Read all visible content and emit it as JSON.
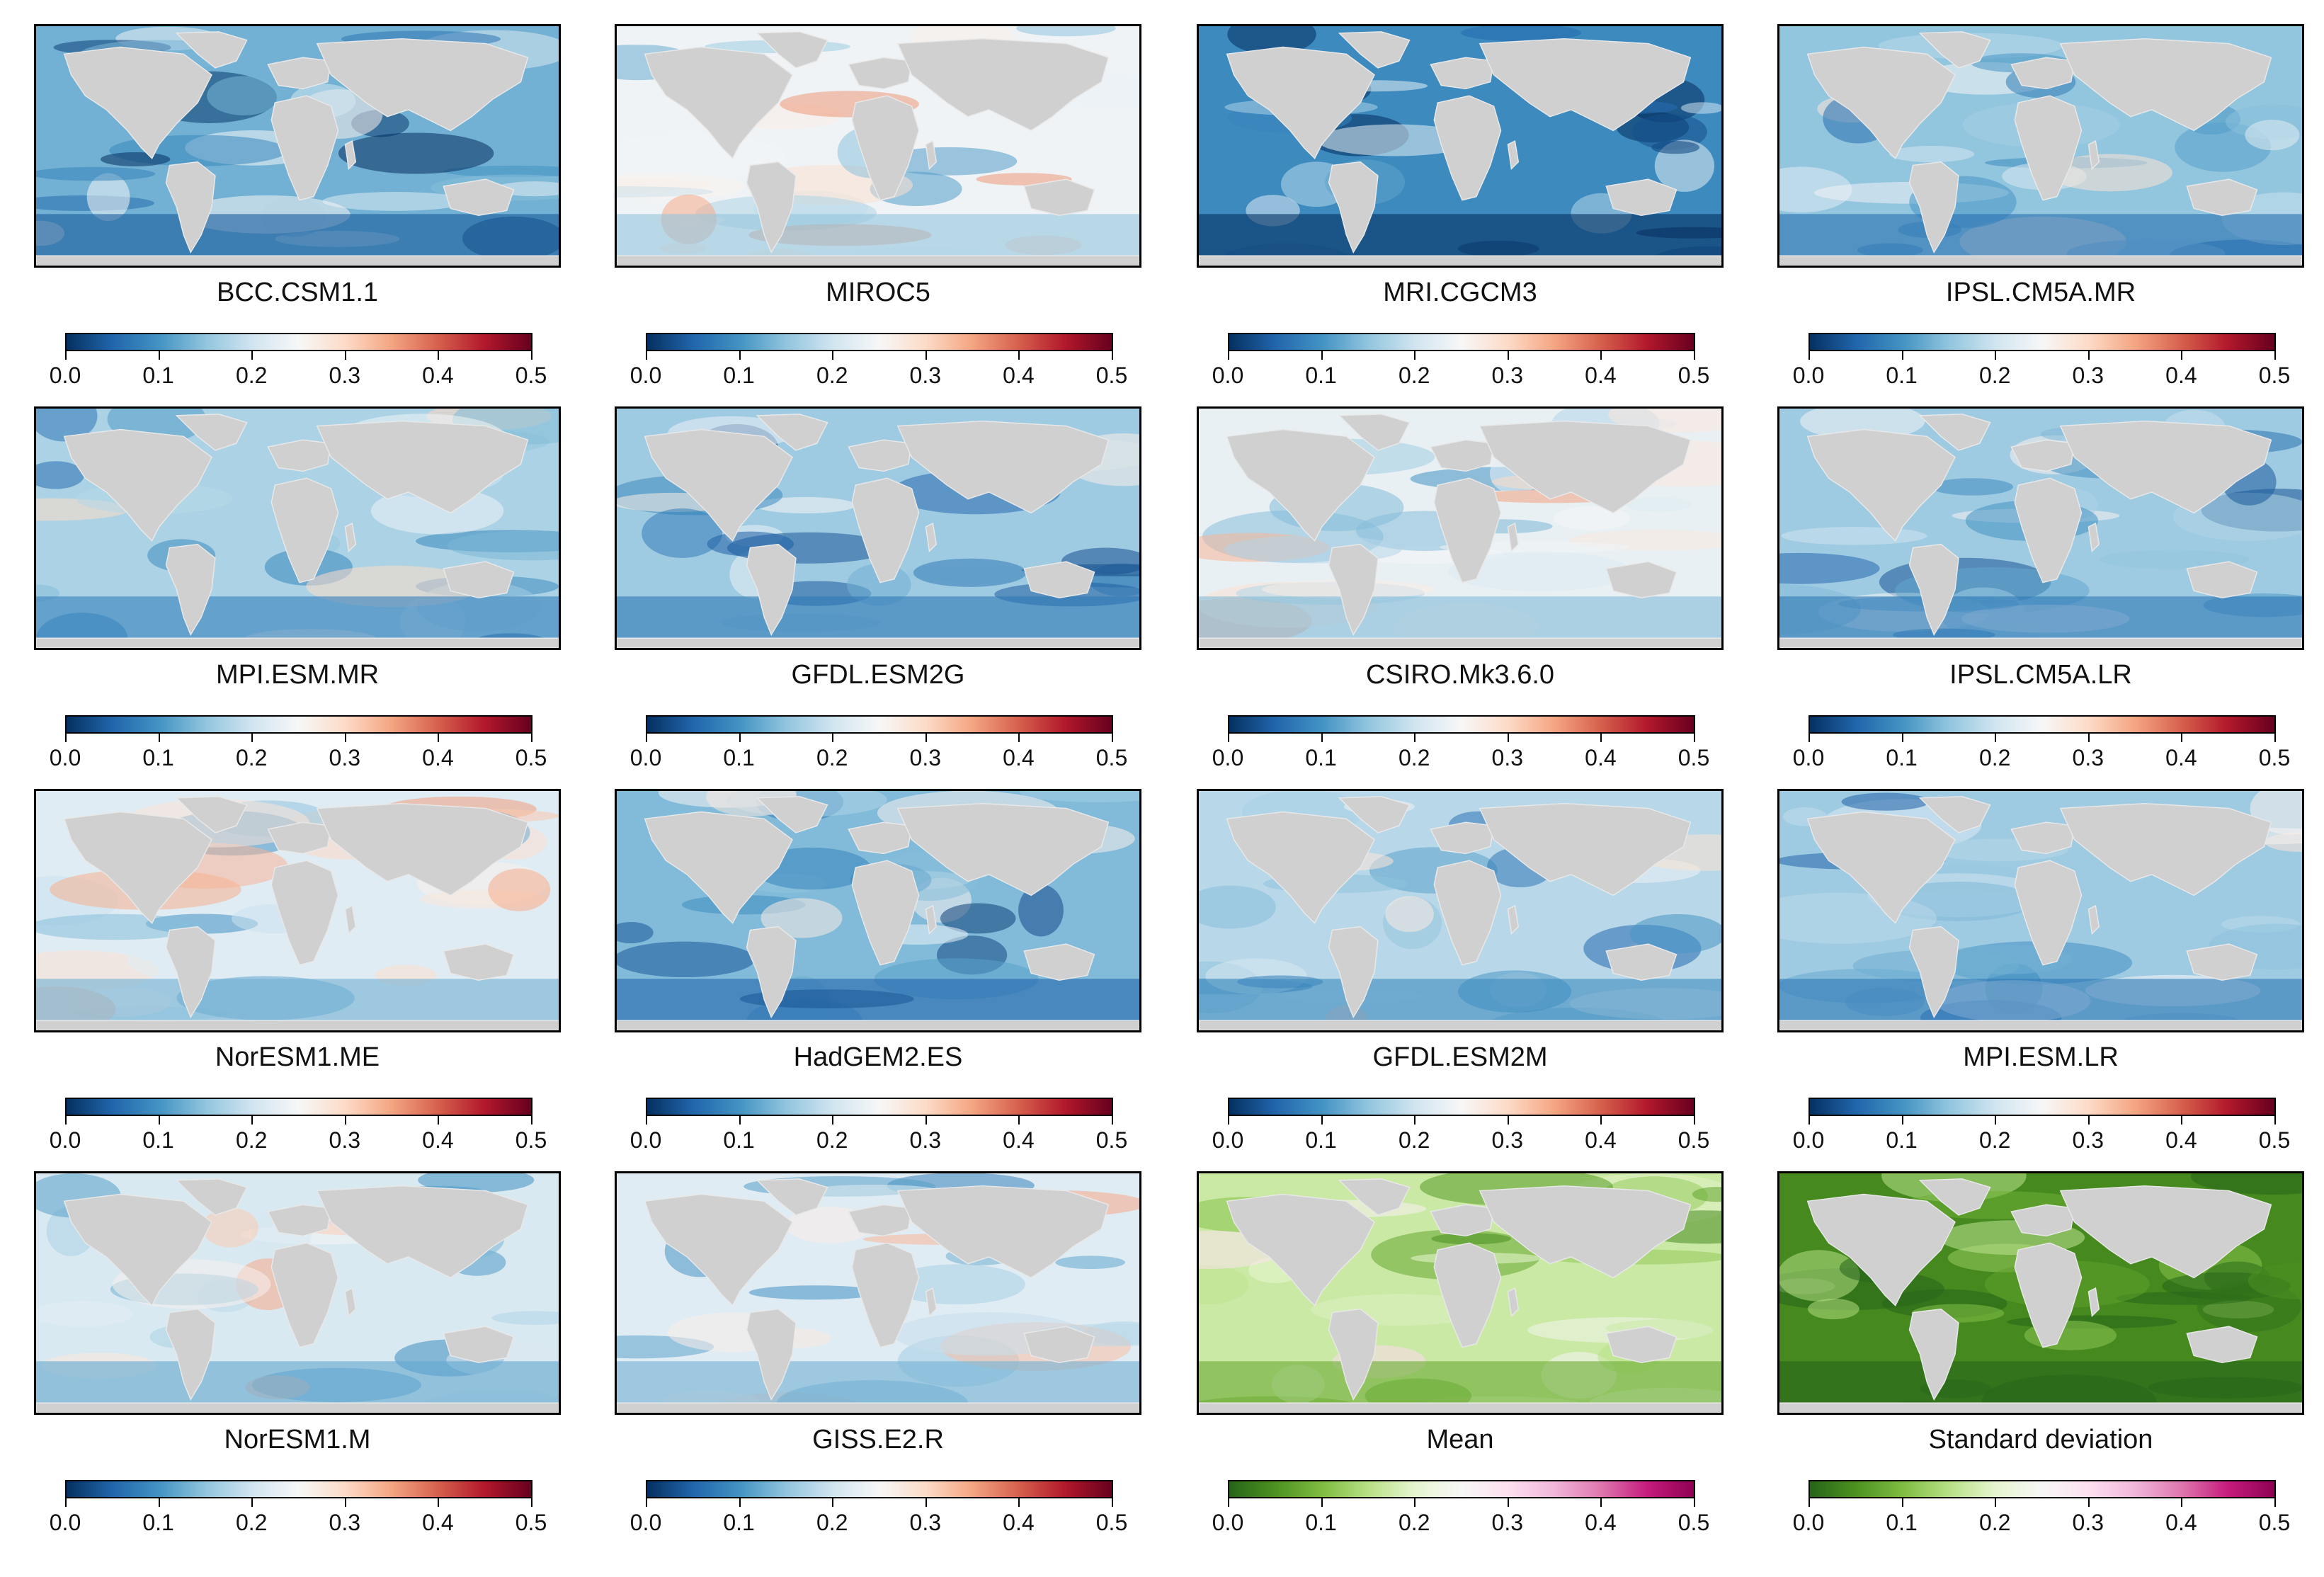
{
  "chart_data": {
    "type": "heatmap",
    "title": "",
    "colorbar": {
      "range": [
        0.0,
        0.5
      ],
      "ticks": [
        "0.0",
        "0.1",
        "0.2",
        "0.3",
        "0.4",
        "0.5"
      ]
    },
    "colormaps": {
      "diverging": [
        "#053061",
        "#2166ac",
        "#4393c3",
        "#92c5de",
        "#d1e5f0",
        "#f7f7f7",
        "#fddbc7",
        "#f4a582",
        "#d6604d",
        "#b2182b",
        "#67001f"
      ],
      "piyg": [
        "#276419",
        "#4d9221",
        "#7fbc41",
        "#b8e186",
        "#e6f5d0",
        "#f7f7f7",
        "#fde0ef",
        "#f1b6da",
        "#de77ae",
        "#c51b7d",
        "#8e0152"
      ]
    },
    "panels": [
      {
        "name": "BCC.CSM1.1",
        "colormap": "diverging",
        "mean_level": 0.13
      },
      {
        "name": "MIROC5",
        "colormap": "diverging",
        "mean_level": 0.24
      },
      {
        "name": "MRI.CGCM3",
        "colormap": "diverging",
        "mean_level": 0.09
      },
      {
        "name": "IPSL.CM5A.MR",
        "colormap": "diverging",
        "mean_level": 0.15
      },
      {
        "name": "MPI.ESM.MR",
        "colormap": "diverging",
        "mean_level": 0.17
      },
      {
        "name": "GFDL.ESM2G",
        "colormap": "diverging",
        "mean_level": 0.16
      },
      {
        "name": "CSIRO.Mk3.6.0",
        "colormap": "diverging",
        "mean_level": 0.23
      },
      {
        "name": "IPSL.CM5A.LR",
        "colormap": "diverging",
        "mean_level": 0.16
      },
      {
        "name": "NorESM1.ME",
        "colormap": "diverging",
        "mean_level": 0.22
      },
      {
        "name": "HadGEM2.ES",
        "colormap": "diverging",
        "mean_level": 0.14
      },
      {
        "name": "GFDL.ESM2M",
        "colormap": "diverging",
        "mean_level": 0.18
      },
      {
        "name": "MPI.ESM.LR",
        "colormap": "diverging",
        "mean_level": 0.16
      },
      {
        "name": "NorESM1.M",
        "colormap": "diverging",
        "mean_level": 0.21
      },
      {
        "name": "GISS.E2.R",
        "colormap": "diverging",
        "mean_level": 0.22
      },
      {
        "name": "Mean",
        "colormap": "piyg",
        "mean_level": 0.17
      },
      {
        "name": "Standard deviation",
        "colormap": "piyg",
        "mean_level": 0.04
      }
    ],
    "land_color": "#d0d0d0",
    "contour_color": "#000000"
  }
}
